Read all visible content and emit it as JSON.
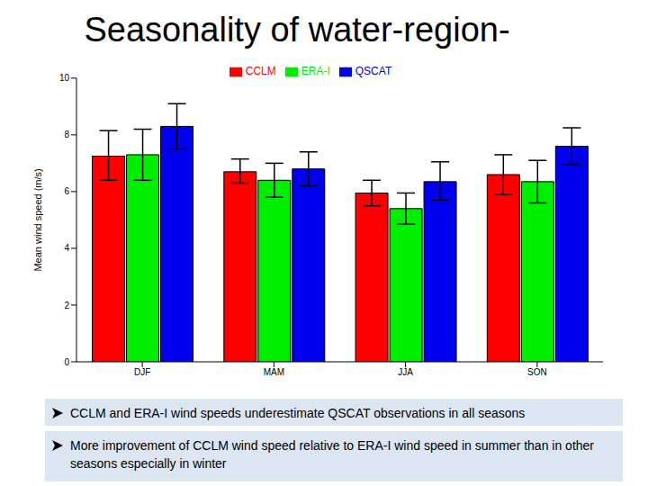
{
  "chart_data": {
    "type": "bar",
    "title": "Seasonality of water-region-",
    "y_label": "Mean wind speed (m/s)",
    "categories": [
      "DJF",
      "MAM",
      "JJA",
      "SON"
    ],
    "series": [
      {
        "name": "CCLM",
        "color": "#ff0000",
        "values": [
          7.25,
          6.7,
          5.95,
          6.6
        ],
        "lower": [
          6.4,
          6.3,
          5.5,
          5.9
        ],
        "upper": [
          8.15,
          7.15,
          6.4,
          7.3
        ]
      },
      {
        "name": "ERA-I",
        "color": "#00ee00",
        "values": [
          7.3,
          6.4,
          5.4,
          6.35
        ],
        "lower": [
          6.4,
          5.8,
          4.85,
          5.6
        ],
        "upper": [
          8.2,
          7.0,
          5.95,
          7.1
        ]
      },
      {
        "name": "QSCAT",
        "color": "#0000ee",
        "values": [
          8.3,
          6.8,
          6.35,
          7.6
        ],
        "lower": [
          7.5,
          6.2,
          5.7,
          6.95
        ],
        "upper": [
          9.1,
          7.4,
          7.05,
          8.25
        ]
      }
    ],
    "ylim": [
      0,
      10
    ],
    "yticks": [
      0,
      2,
      4,
      6,
      8,
      10
    ],
    "grid": false,
    "legend": "top",
    "annotations": [
      "CCLM and ERA-I wind speeds underestimate QSCAT observations in all seasons",
      "More improvement of CCLM wind speed relative to ERA-I wind speed in summer than in other seasons especially in winter"
    ]
  }
}
